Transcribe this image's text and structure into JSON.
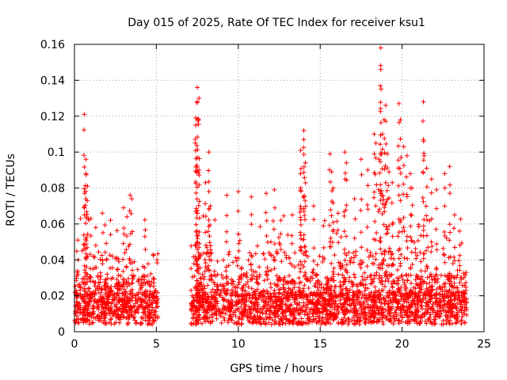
{
  "chart_data": {
    "type": "scatter",
    "title": "Day 015 of 2025, Rate Of TEC Index for receiver ksu1",
    "xlabel": "GPS time / hours",
    "ylabel": "ROTI / TECUs",
    "xlim": [
      0,
      25
    ],
    "ylim": [
      0,
      0.16
    ],
    "xticks": [
      0,
      5,
      10,
      15,
      20,
      25
    ],
    "xtick_labels": [
      "0",
      "5",
      "10",
      "15",
      "20",
      "25"
    ],
    "yticks": [
      0,
      0.02,
      0.04,
      0.06,
      0.08,
      0.1,
      0.12,
      0.14,
      0.16
    ],
    "ytick_labels": [
      "0",
      "0.02",
      "0.04",
      "0.06",
      "0.08",
      "0.1",
      "0.12",
      "0.14",
      "0.16"
    ],
    "grid": true,
    "marker": "+",
    "color": "#ff0000",
    "series": [
      {
        "name": "ROTI",
        "segments": [
          {
            "x_range": [
              0.0,
              5.1
            ],
            "note": "dense data, typical 0.005-0.03"
          },
          {
            "x_range": [
              7.1,
              24.0
            ],
            "note": "dense data, typical 0.005-0.04"
          }
        ],
        "points": [
          {
            "x": 0.6,
            "y": 0.121
          },
          {
            "x": 0.7,
            "y": 0.096
          },
          {
            "x": 0.7,
            "y": 0.088
          },
          {
            "x": 0.8,
            "y": 0.081
          },
          {
            "x": 0.7,
            "y": 0.074
          },
          {
            "x": 0.6,
            "y": 0.065
          },
          {
            "x": 1.0,
            "y": 0.063
          },
          {
            "x": 1.3,
            "y": 0.058
          },
          {
            "x": 1.7,
            "y": 0.066
          },
          {
            "x": 2.2,
            "y": 0.062
          },
          {
            "x": 3.0,
            "y": 0.069
          },
          {
            "x": 3.4,
            "y": 0.076
          },
          {
            "x": 3.5,
            "y": 0.074
          },
          {
            "x": 3.2,
            "y": 0.064
          },
          {
            "x": 4.3,
            "y": 0.053
          },
          {
            "x": 0.2,
            "y": 0.051
          },
          {
            "x": 7.5,
            "y": 0.066
          },
          {
            "x": 7.5,
            "y": 0.136
          },
          {
            "x": 7.6,
            "y": 0.13
          },
          {
            "x": 7.5,
            "y": 0.128
          },
          {
            "x": 7.4,
            "y": 0.119
          },
          {
            "x": 7.4,
            "y": 0.115
          },
          {
            "x": 8.2,
            "y": 0.1
          },
          {
            "x": 7.5,
            "y": 0.097
          },
          {
            "x": 7.6,
            "y": 0.09
          },
          {
            "x": 8.0,
            "y": 0.083
          },
          {
            "x": 8.2,
            "y": 0.078
          },
          {
            "x": 8.3,
            "y": 0.07
          },
          {
            "x": 9.3,
            "y": 0.076
          },
          {
            "x": 10.0,
            "y": 0.078
          },
          {
            "x": 10.8,
            "y": 0.075
          },
          {
            "x": 11.7,
            "y": 0.077
          },
          {
            "x": 12.2,
            "y": 0.079
          },
          {
            "x": 12.6,
            "y": 0.062
          },
          {
            "x": 13.3,
            "y": 0.065
          },
          {
            "x": 14.0,
            "y": 0.112
          },
          {
            "x": 14.0,
            "y": 0.107
          },
          {
            "x": 13.8,
            "y": 0.101
          },
          {
            "x": 14.1,
            "y": 0.094
          },
          {
            "x": 13.8,
            "y": 0.088
          },
          {
            "x": 13.8,
            "y": 0.08
          },
          {
            "x": 14.6,
            "y": 0.07
          },
          {
            "x": 15.6,
            "y": 0.099
          },
          {
            "x": 15.7,
            "y": 0.089
          },
          {
            "x": 15.8,
            "y": 0.08
          },
          {
            "x": 16.1,
            "y": 0.066
          },
          {
            "x": 16.5,
            "y": 0.1
          },
          {
            "x": 16.6,
            "y": 0.094
          },
          {
            "x": 17.1,
            "y": 0.074
          },
          {
            "x": 17.5,
            "y": 0.096
          },
          {
            "x": 17.9,
            "y": 0.09
          },
          {
            "x": 18.3,
            "y": 0.11
          },
          {
            "x": 18.4,
            "y": 0.105
          },
          {
            "x": 18.6,
            "y": 0.096
          },
          {
            "x": 18.7,
            "y": 0.158
          },
          {
            "x": 18.7,
            "y": 0.146
          },
          {
            "x": 18.8,
            "y": 0.11
          },
          {
            "x": 18.9,
            "y": 0.118
          },
          {
            "x": 19.0,
            "y": 0.126
          },
          {
            "x": 19.1,
            "y": 0.099
          },
          {
            "x": 19.2,
            "y": 0.089
          },
          {
            "x": 19.4,
            "y": 0.083
          },
          {
            "x": 19.8,
            "y": 0.127
          },
          {
            "x": 19.9,
            "y": 0.118
          },
          {
            "x": 20.1,
            "y": 0.103
          },
          {
            "x": 20.3,
            "y": 0.098
          },
          {
            "x": 20.5,
            "y": 0.088
          },
          {
            "x": 20.6,
            "y": 0.08
          },
          {
            "x": 21.3,
            "y": 0.128
          },
          {
            "x": 21.3,
            "y": 0.107
          },
          {
            "x": 21.5,
            "y": 0.091
          },
          {
            "x": 21.8,
            "y": 0.085
          },
          {
            "x": 22.1,
            "y": 0.079
          },
          {
            "x": 22.6,
            "y": 0.088
          },
          {
            "x": 22.9,
            "y": 0.092
          },
          {
            "x": 23.2,
            "y": 0.065
          },
          {
            "x": 23.5,
            "y": 0.056
          },
          {
            "x": 23.9,
            "y": 0.033
          }
        ]
      }
    ]
  }
}
